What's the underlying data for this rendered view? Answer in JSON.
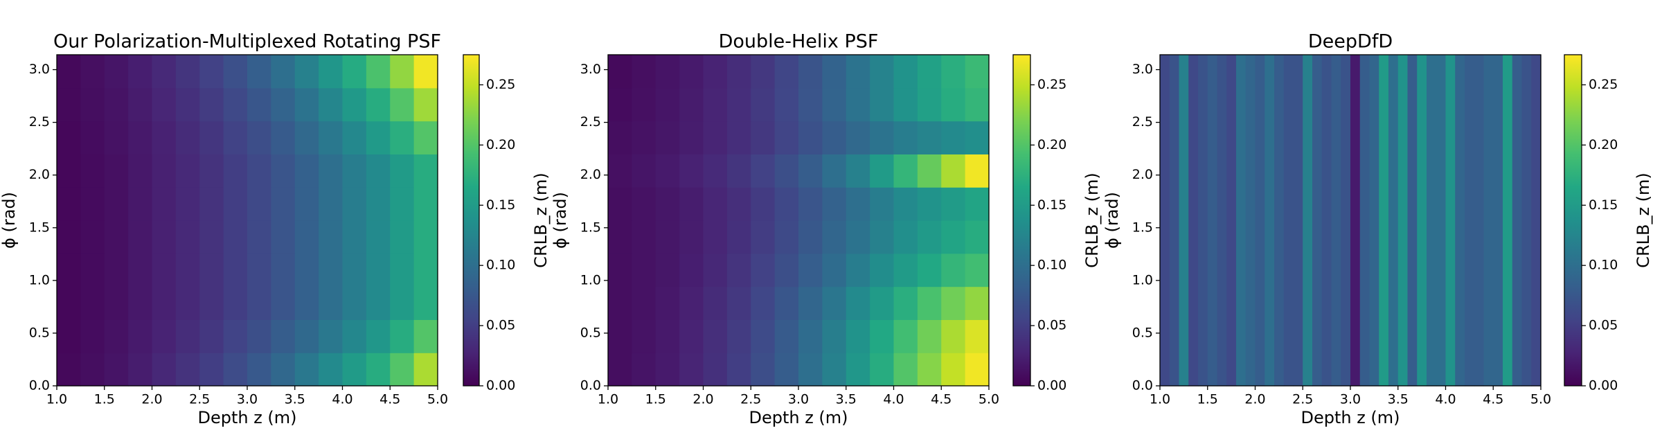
{
  "chart_data": [
    {
      "type": "heatmap",
      "title": "Our Polarization-Multiplexed Rotating PSF",
      "x_label": "Depth z (m)",
      "y_label": "ϕ (rad)",
      "colorbar_label": "CRLB_z (m)",
      "colormap": "viridis",
      "clim": [
        0,
        0.275
      ],
      "xlim": [
        1,
        5
      ],
      "ylim": [
        0,
        3.1416
      ],
      "xticks": [
        {
          "value": 1,
          "label": "1.0"
        },
        {
          "value": 1.5,
          "label": "1.5"
        },
        {
          "value": 2,
          "label": "2.0"
        },
        {
          "value": 2.5,
          "label": "2.5"
        },
        {
          "value": 3,
          "label": "3.0"
        },
        {
          "value": 3.5,
          "label": "3.5"
        },
        {
          "value": 4,
          "label": "4.0"
        },
        {
          "value": 4.5,
          "label": "4.5"
        },
        {
          "value": 5,
          "label": "5.0"
        }
      ],
      "yticks": [
        {
          "value": 0,
          "label": "0.0"
        },
        {
          "value": 0.5,
          "label": "0.5"
        },
        {
          "value": 1,
          "label": "1.0"
        },
        {
          "value": 1.5,
          "label": "1.5"
        },
        {
          "value": 2,
          "label": "2.0"
        },
        {
          "value": 2.5,
          "label": "2.5"
        },
        {
          "value": 3,
          "label": "3.0"
        }
      ],
      "colorbar_ticks": [
        {
          "value": 0,
          "label": "0.00"
        },
        {
          "value": 0.05,
          "label": "0.05"
        },
        {
          "value": 0.1,
          "label": "0.10"
        },
        {
          "value": 0.15,
          "label": "0.15"
        },
        {
          "value": 0.2,
          "label": "0.20"
        },
        {
          "value": 0.25,
          "label": "0.25"
        }
      ],
      "z": [
        [
          0.006,
          0.01,
          0.015,
          0.022,
          0.031,
          0.04,
          0.05,
          0.063,
          0.076,
          0.092,
          0.11,
          0.13,
          0.15,
          0.17,
          0.2,
          0.24
        ],
        [
          0.005,
          0.009,
          0.013,
          0.02,
          0.027,
          0.035,
          0.044,
          0.055,
          0.066,
          0.08,
          0.094,
          0.11,
          0.127,
          0.145,
          0.17,
          0.2
        ],
        [
          0.005,
          0.008,
          0.012,
          0.018,
          0.025,
          0.032,
          0.04,
          0.05,
          0.06,
          0.072,
          0.085,
          0.1,
          0.115,
          0.13,
          0.15,
          0.17
        ],
        [
          0.005,
          0.008,
          0.012,
          0.018,
          0.025,
          0.032,
          0.04,
          0.05,
          0.06,
          0.072,
          0.085,
          0.1,
          0.115,
          0.13,
          0.15,
          0.17
        ],
        [
          0.005,
          0.008,
          0.012,
          0.018,
          0.025,
          0.032,
          0.04,
          0.05,
          0.06,
          0.072,
          0.085,
          0.1,
          0.115,
          0.13,
          0.15,
          0.17
        ],
        [
          0.005,
          0.008,
          0.012,
          0.018,
          0.025,
          0.032,
          0.04,
          0.05,
          0.06,
          0.072,
          0.085,
          0.1,
          0.115,
          0.13,
          0.15,
          0.17
        ],
        [
          0.005,
          0.008,
          0.012,
          0.018,
          0.025,
          0.032,
          0.04,
          0.05,
          0.06,
          0.072,
          0.085,
          0.1,
          0.115,
          0.13,
          0.15,
          0.17
        ],
        [
          0.005,
          0.009,
          0.013,
          0.019,
          0.026,
          0.034,
          0.043,
          0.054,
          0.065,
          0.078,
          0.093,
          0.11,
          0.128,
          0.148,
          0.172,
          0.2
        ],
        [
          0.006,
          0.01,
          0.014,
          0.021,
          0.029,
          0.038,
          0.048,
          0.06,
          0.073,
          0.088,
          0.105,
          0.125,
          0.147,
          0.17,
          0.2,
          0.235
        ],
        [
          0.006,
          0.011,
          0.016,
          0.023,
          0.032,
          0.042,
          0.053,
          0.067,
          0.082,
          0.1,
          0.12,
          0.143,
          0.168,
          0.196,
          0.23,
          0.27
        ]
      ]
    },
    {
      "type": "heatmap",
      "title": "Double-Helix PSF",
      "x_label": "Depth z (m)",
      "y_label": "ϕ (rad)",
      "colorbar_label": "CRLB_z (m)",
      "colormap": "viridis",
      "clim": [
        0,
        0.275
      ],
      "xlim": [
        1,
        5
      ],
      "ylim": [
        0,
        3.1416
      ],
      "xticks": [
        {
          "value": 1,
          "label": "1.0"
        },
        {
          "value": 1.5,
          "label": "1.5"
        },
        {
          "value": 2,
          "label": "2.0"
        },
        {
          "value": 2.5,
          "label": "2.5"
        },
        {
          "value": 3,
          "label": "3.0"
        },
        {
          "value": 3.5,
          "label": "3.5"
        },
        {
          "value": 4,
          "label": "4.0"
        },
        {
          "value": 4.5,
          "label": "4.5"
        },
        {
          "value": 5,
          "label": "5.0"
        }
      ],
      "yticks": [
        {
          "value": 0,
          "label": "0.0"
        },
        {
          "value": 0.5,
          "label": "0.5"
        },
        {
          "value": 1,
          "label": "1.0"
        },
        {
          "value": 1.5,
          "label": "1.5"
        },
        {
          "value": 2,
          "label": "2.0"
        },
        {
          "value": 2.5,
          "label": "2.5"
        },
        {
          "value": 3,
          "label": "3.0"
        }
      ],
      "colorbar_ticks": [
        {
          "value": 0,
          "label": "0.00"
        },
        {
          "value": 0.05,
          "label": "0.05"
        },
        {
          "value": 0.1,
          "label": "0.10"
        },
        {
          "value": 0.15,
          "label": "0.15"
        },
        {
          "value": 0.2,
          "label": "0.20"
        },
        {
          "value": 0.25,
          "label": "0.25"
        }
      ],
      "z": [
        [
          0.01,
          0.015,
          0.02,
          0.028,
          0.038,
          0.05,
          0.065,
          0.08,
          0.1,
          0.12,
          0.145,
          0.17,
          0.2,
          0.225,
          0.25,
          0.27
        ],
        [
          0.01,
          0.014,
          0.019,
          0.027,
          0.037,
          0.048,
          0.062,
          0.078,
          0.097,
          0.117,
          0.14,
          0.165,
          0.19,
          0.215,
          0.24,
          0.26
        ],
        [
          0.01,
          0.013,
          0.018,
          0.025,
          0.034,
          0.045,
          0.058,
          0.073,
          0.09,
          0.108,
          0.13,
          0.15,
          0.172,
          0.195,
          0.215,
          0.23
        ],
        [
          0.01,
          0.013,
          0.017,
          0.023,
          0.031,
          0.041,
          0.053,
          0.066,
          0.081,
          0.097,
          0.115,
          0.133,
          0.15,
          0.165,
          0.18,
          0.19
        ],
        [
          0.01,
          0.013,
          0.017,
          0.022,
          0.029,
          0.038,
          0.049,
          0.061,
          0.075,
          0.09,
          0.105,
          0.12,
          0.135,
          0.148,
          0.16,
          0.17
        ],
        [
          0.01,
          0.013,
          0.017,
          0.022,
          0.029,
          0.037,
          0.047,
          0.059,
          0.072,
          0.086,
          0.1,
          0.115,
          0.13,
          0.14,
          0.15,
          0.16
        ],
        [
          0.012,
          0.016,
          0.02,
          0.026,
          0.033,
          0.042,
          0.053,
          0.066,
          0.08,
          0.1,
          0.12,
          0.15,
          0.18,
          0.21,
          0.24,
          0.27
        ],
        [
          0.01,
          0.013,
          0.017,
          0.022,
          0.028,
          0.036,
          0.045,
          0.056,
          0.068,
          0.08,
          0.093,
          0.105,
          0.115,
          0.123,
          0.13,
          0.135
        ],
        [
          0.008,
          0.012,
          0.016,
          0.021,
          0.028,
          0.036,
          0.046,
          0.058,
          0.072,
          0.088,
          0.105,
          0.122,
          0.14,
          0.155,
          0.17,
          0.18
        ],
        [
          0.007,
          0.011,
          0.015,
          0.02,
          0.027,
          0.035,
          0.045,
          0.057,
          0.071,
          0.087,
          0.104,
          0.122,
          0.14,
          0.157,
          0.172,
          0.185
        ]
      ]
    },
    {
      "type": "heatmap",
      "title": "DeepDfD",
      "x_label": "Depth z (m)",
      "y_label": "ϕ (rad)",
      "colorbar_label": "CRLB_z (m)",
      "colormap": "viridis",
      "clim": [
        0,
        0.275
      ],
      "xlim": [
        1,
        5
      ],
      "ylim": [
        0,
        3.1416
      ],
      "xticks": [
        {
          "value": 1,
          "label": "1.0"
        },
        {
          "value": 1.5,
          "label": "1.5"
        },
        {
          "value": 2,
          "label": "2.0"
        },
        {
          "value": 2.5,
          "label": "2.5"
        },
        {
          "value": 3,
          "label": "3.0"
        },
        {
          "value": 3.5,
          "label": "3.5"
        },
        {
          "value": 4,
          "label": "4.0"
        },
        {
          "value": 4.5,
          "label": "4.5"
        },
        {
          "value": 5,
          "label": "5.0"
        }
      ],
      "yticks": [
        {
          "value": 0,
          "label": "0.0"
        },
        {
          "value": 0.5,
          "label": "0.5"
        },
        {
          "value": 1,
          "label": "1.0"
        },
        {
          "value": 1.5,
          "label": "1.5"
        },
        {
          "value": 2,
          "label": "2.0"
        },
        {
          "value": 2.5,
          "label": "2.5"
        },
        {
          "value": 3,
          "label": "3.0"
        }
      ],
      "colorbar_ticks": [
        {
          "value": 0,
          "label": "0.00"
        },
        {
          "value": 0.05,
          "label": "0.05"
        },
        {
          "value": 0.1,
          "label": "0.10"
        },
        {
          "value": 0.15,
          "label": "0.15"
        },
        {
          "value": 0.2,
          "label": "0.20"
        },
        {
          "value": 0.25,
          "label": "0.25"
        }
      ],
      "z": [
        [
          0.06,
          0.07,
          0.12,
          0.06,
          0.07,
          0.08,
          0.07,
          0.06,
          0.1,
          0.09,
          0.08,
          0.1,
          0.08,
          0.07,
          0.07,
          0.12,
          0.08,
          0.07,
          0.08,
          0.07,
          0.02,
          0.08,
          0.09,
          0.15,
          0.1,
          0.14,
          0.08,
          0.14,
          0.1,
          0.1,
          0.14,
          0.09,
          0.08,
          0.08,
          0.09,
          0.09,
          0.15,
          0.08,
          0.07,
          0.06
        ]
      ]
    }
  ]
}
